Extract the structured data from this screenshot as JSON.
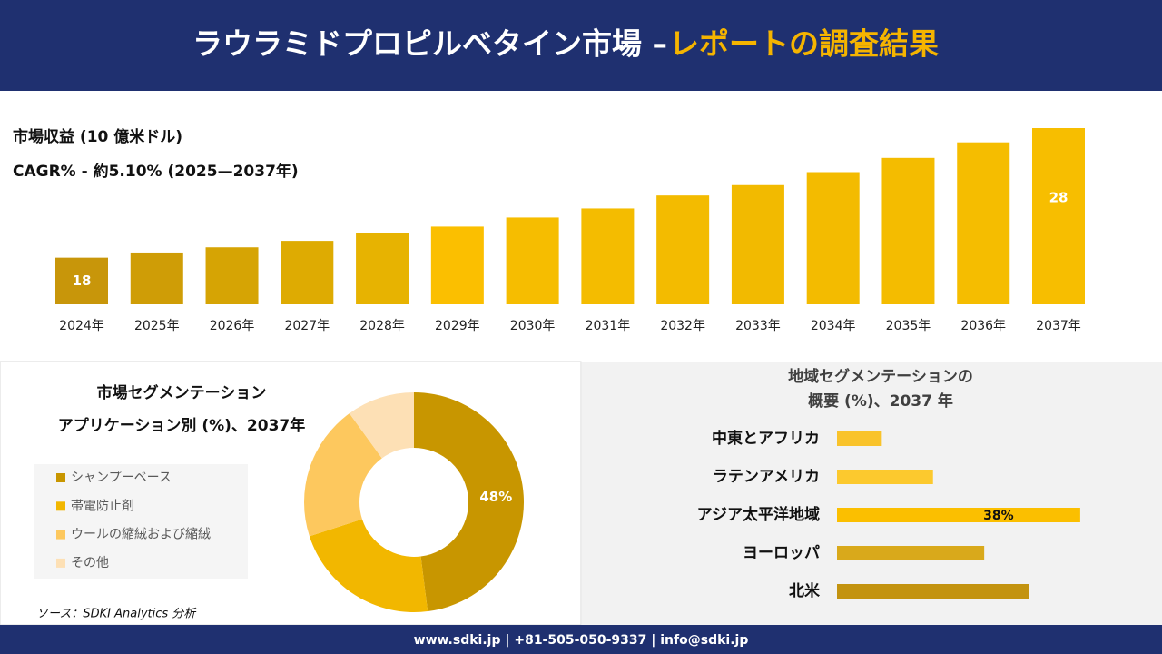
{
  "header": {
    "title": "ラウラミドプロピルベタイン市場 –",
    "title_highlight": "レポートの調査結果"
  },
  "chart_data": [
    {
      "type": "bar",
      "title": "市場収益 (10 億米ドル)",
      "subtitle": "CAGR% - 約5.10% (2025—2037年)",
      "categories": [
        "2024年",
        "2025年",
        "2026年",
        "2027年",
        "2028年",
        "2029年",
        "2030年",
        "2031年",
        "2032年",
        "2033年",
        "2034年",
        "2035年",
        "2036年",
        "2037年"
      ],
      "values": [
        18,
        18.4,
        18.8,
        19.3,
        19.9,
        20.4,
        21.1,
        21.8,
        22.8,
        23.6,
        24.6,
        25.7,
        26.9,
        28
      ],
      "value_labels": [
        "18",
        null,
        null,
        null,
        null,
        null,
        null,
        null,
        null,
        null,
        null,
        null,
        null,
        "28"
      ],
      "colors": [
        "#c8960a",
        "#cf9d06",
        "#d6a404",
        "#deab02",
        "#e7b301",
        "#fbbf00",
        "#f6bd00",
        "#f4bc00",
        "#f3bb00",
        "#f2ba00",
        "#f3bb00",
        "#f4bc00",
        "#f5bd00",
        "#f7be00"
      ],
      "ylim": [
        14.4,
        28
      ]
    },
    {
      "type": "donut",
      "title": [
        "市場セグメンテーション",
        "アプリケーション別 (%)、2037年"
      ],
      "categories": [
        "シャンプーベース",
        "帯電防止剤",
        "ウールの縮絨および縮絨",
        "その他"
      ],
      "values": [
        48,
        22,
        20,
        10
      ],
      "value_labels": [
        "48%",
        null,
        null,
        null
      ],
      "colors": [
        "#c89600",
        "#f2b700",
        "#fdc85e",
        "#fde0b5"
      ]
    },
    {
      "type": "hbar",
      "title": [
        "地域セグメンテーションの",
        "概要 (%)、2037 年"
      ],
      "categories": [
        "中東とアフリカ",
        "ラテンアメリカ",
        "アジア太平洋地域",
        "ヨーロッパ",
        "北米"
      ],
      "values": [
        7,
        15,
        38,
        23,
        30
      ],
      "value_labels": [
        null,
        null,
        "38%",
        null,
        null
      ],
      "colors": [
        "#f9c32b",
        "#fcc92e",
        "#fbbf00",
        "#d9a91b",
        "#c39310"
      ],
      "xlim": [
        0,
        40
      ]
    }
  ],
  "source": "ソース：SDKI Analytics 分析",
  "footer": "www.sdki.jp | +81-505-050-9337 | info@sdki.jp"
}
